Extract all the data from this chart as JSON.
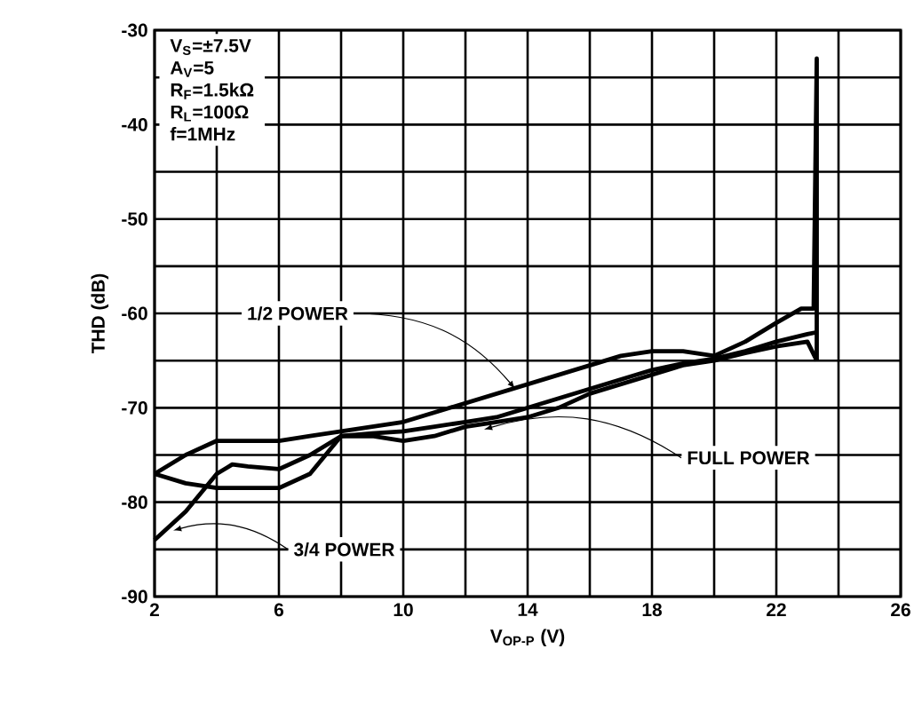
{
  "chart_data": {
    "type": "line",
    "xlabel": "V$_{OP-P}$ (V)",
    "ylabel": "THD (dB)",
    "xlim": [
      2,
      26
    ],
    "ylim": [
      -90,
      -30
    ],
    "xticks": [
      2,
      {
        "value": 4,
        "label": null
      },
      6,
      {
        "value": 8,
        "label": null
      },
      10,
      {
        "value": 12,
        "label": null
      },
      14,
      {
        "value": 16,
        "label": null
      },
      18,
      {
        "value": 20,
        "label": null
      },
      22,
      {
        "value": 24,
        "label": null
      },
      26
    ],
    "yticks": [
      -90,
      {
        "value": -85,
        "label": null
      },
      -80,
      {
        "value": -75,
        "label": null
      },
      -70,
      {
        "value": -65,
        "label": null
      },
      -60,
      {
        "value": -55,
        "label": null
      },
      -50,
      {
        "value": -45,
        "label": null
      },
      -40,
      {
        "value": -35,
        "label": null
      },
      -30
    ],
    "grid": true,
    "marker": "none",
    "line_style": "solid",
    "series": [
      {
        "color": "#000000",
        "x": [
          2,
          3,
          4,
          5,
          6,
          7,
          8,
          9,
          10,
          11,
          12,
          13,
          14,
          15,
          16,
          17,
          18,
          19,
          20,
          21,
          22,
          22.8,
          23.2,
          23.3,
          23.3
        ],
        "values": [
          -77,
          -75,
          -73.5,
          -73.5,
          -73.5,
          -73,
          -72.5,
          -72,
          -71.5,
          -70.5,
          -69.5,
          -68.5,
          -67.5,
          -66.5,
          -65.5,
          -64.5,
          -64,
          -64,
          -64.5,
          -63,
          -61,
          -59.5,
          -59.5,
          -33,
          -65
        ]
      },
      {
        "color": "#000000",
        "x": [
          2,
          3,
          4,
          5,
          6,
          7,
          8,
          9,
          10,
          11,
          12,
          13,
          14,
          15,
          16,
          17,
          18,
          19,
          20,
          21,
          22,
          23,
          23.3
        ],
        "values": [
          -77,
          -78,
          -78.5,
          -78.5,
          -78.5,
          -77,
          -73,
          -73,
          -73.5,
          -73,
          -72,
          -71.5,
          -71,
          -70,
          -68.5,
          -67.5,
          -66.5,
          -65.5,
          -65,
          -64.2,
          -63.5,
          -63,
          -65
        ]
      },
      {
        "color": "#000000",
        "x": [
          2,
          3,
          3.5,
          4,
          4.5,
          5,
          6,
          7,
          8,
          9,
          10,
          11,
          12,
          13,
          14,
          15,
          16,
          17,
          18,
          19,
          20,
          21,
          22,
          23,
          23.3
        ],
        "values": [
          -84,
          -81,
          -79,
          -77,
          -76,
          -76.2,
          -76.5,
          -75,
          -73,
          -72.7,
          -72.5,
          -72,
          -71.5,
          -71,
          -70,
          -69,
          -68,
          -67,
          -66,
          -65.3,
          -64.8,
          -64,
          -63,
          -62.2,
          -62
        ]
      }
    ],
    "annotations": [
      "V$_{S}$=±7.5V",
      "A$_{V}$=5",
      "R$_{F}$=1.5kΩ",
      "R$_{L}$=100Ω",
      "f=1MHz",
      {
        "text": "1/2 POWER",
        "x": 13.6,
        "y": -68
      },
      {
        "text": "FULL POWER",
        "x": 12.6,
        "y": -72.3
      },
      {
        "text": "3/4 POWER",
        "x": 2.6,
        "y": -83
      }
    ]
  }
}
